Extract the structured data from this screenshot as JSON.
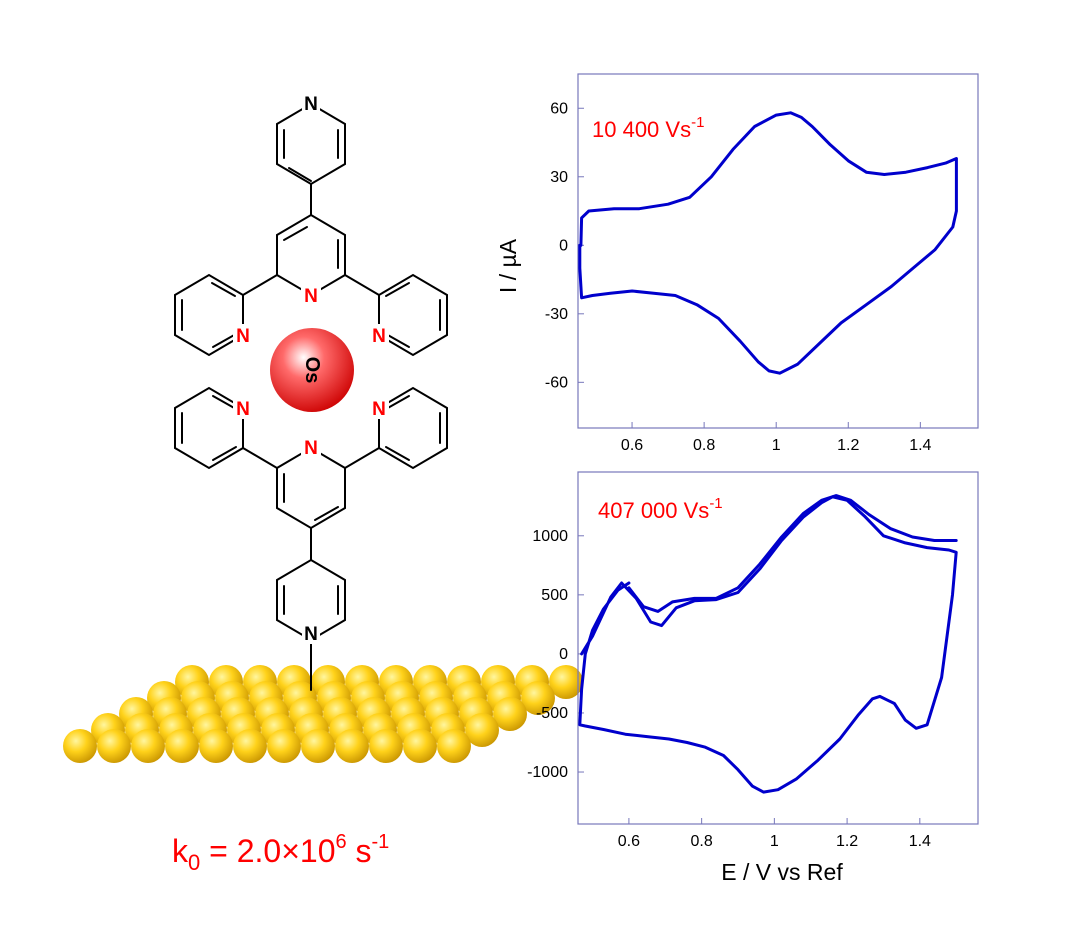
{
  "molecule": {
    "metal_label": "Os",
    "nitrogen_label": "N",
    "rate_constant": {
      "prefix": "k",
      "subscript": "0",
      "middle": " = 2.0×10",
      "exponent": "6",
      "unit": " s",
      "unit_exponent": "-1"
    }
  },
  "chart_data": [
    {
      "type": "line",
      "annotation": {
        "text": "10 400 Vs",
        "superscript": "-1"
      },
      "xlabel": "",
      "ylabel": "I / µA",
      "xlim": [
        0.45,
        1.56
      ],
      "ylim": [
        -80,
        75
      ],
      "xticks": [
        0.6,
        0.8,
        1,
        1.2,
        1.4
      ],
      "xtick_labels": [
        "0.6",
        "0.8",
        "1",
        "1.2",
        "1.4"
      ],
      "yticks": [
        60,
        30,
        0,
        -30,
        -60
      ],
      "ytick_labels": [
        "60",
        "30",
        "0",
        "-30",
        "-60"
      ],
      "series_color": "#0000cc",
      "series": [
        {
          "x": [
            0.458,
            0.46,
            0.48,
            0.55,
            0.62,
            0.7,
            0.76,
            0.82,
            0.88,
            0.94,
            1.0,
            1.04,
            1.07,
            1.1,
            1.15,
            1.2,
            1.25,
            1.3,
            1.36,
            1.42,
            1.47,
            1.5,
            1.5,
            1.49,
            1.44,
            1.38,
            1.32,
            1.25,
            1.18,
            1.12,
            1.06,
            1.01,
            0.98,
            0.95,
            0.9,
            0.84,
            0.78,
            0.72,
            0.66,
            0.6,
            0.54,
            0.49,
            0.46,
            0.455,
            0.455
          ],
          "y": [
            0,
            12,
            15,
            16,
            16,
            18,
            21,
            30,
            42,
            52,
            57,
            58,
            56,
            52,
            44,
            37,
            32,
            31,
            32,
            34,
            36,
            38,
            15,
            8,
            -2,
            -10,
            -18,
            -26,
            -34,
            -43,
            -52,
            -56,
            -55,
            -51,
            -42,
            -32,
            -26,
            -22,
            -21,
            -20,
            -21,
            -22,
            -23,
            -10,
            0
          ]
        }
      ]
    },
    {
      "type": "line",
      "annotation": {
        "text": "407 000 Vs",
        "superscript": "-1"
      },
      "xlabel": "E / V vs Ref",
      "ylabel": "",
      "xlim": [
        0.46,
        1.56
      ],
      "ylim": [
        -1440,
        1540
      ],
      "xticks": [
        0.6,
        0.8,
        1,
        1.2,
        1.4
      ],
      "xtick_labels": [
        "0.6",
        "0.8",
        "1",
        "1.2",
        "1.4"
      ],
      "yticks": [
        1000,
        500,
        0,
        -500,
        -1000
      ],
      "ytick_labels": [
        "1000",
        "500",
        "0",
        "-500",
        "-1000"
      ],
      "series_color": "#0000cc",
      "series": [
        {
          "x": [
            0.47,
            0.5,
            0.55,
            0.58,
            0.62,
            0.66,
            0.69,
            0.73,
            0.78,
            0.84,
            0.9,
            0.96,
            1.02,
            1.08,
            1.13,
            1.16,
            1.2,
            1.25,
            1.3,
            1.36,
            1.42,
            1.48,
            1.5,
            1.49,
            1.46,
            1.42,
            1.39,
            1.36,
            1.33,
            1.29,
            1.27,
            1.23,
            1.18,
            1.12,
            1.06,
            1.01,
            0.97,
            0.94,
            0.9,
            0.86,
            0.81,
            0.76,
            0.71,
            0.65,
            0.59,
            0.53,
            0.48,
            0.465,
            0.47,
            0.48,
            0.5,
            0.53,
            0.57,
            0.6
          ],
          "y": [
            0,
            150,
            480,
            600,
            470,
            270,
            240,
            390,
            450,
            460,
            520,
            720,
            960,
            1160,
            1280,
            1330,
            1300,
            1160,
            1000,
            940,
            900,
            880,
            860,
            500,
            -200,
            -600,
            -630,
            -560,
            -420,
            -360,
            -380,
            -520,
            -720,
            -900,
            -1060,
            -1150,
            -1170,
            -1120,
            -980,
            -860,
            -790,
            -750,
            -720,
            -700,
            -680,
            -640,
            -610,
            -600,
            -300,
            0,
            200,
            380,
            540,
            600
          ]
        },
        {
          "x": [
            0.6,
            0.64,
            0.68,
            0.72,
            0.78,
            0.84,
            0.9,
            0.96,
            1.02,
            1.08,
            1.13,
            1.17,
            1.21,
            1.26,
            1.32,
            1.38,
            1.44,
            1.5
          ],
          "y": [
            560,
            400,
            360,
            440,
            470,
            470,
            560,
            760,
            990,
            1190,
            1300,
            1340,
            1300,
            1180,
            1060,
            990,
            960,
            960
          ]
        }
      ]
    }
  ]
}
